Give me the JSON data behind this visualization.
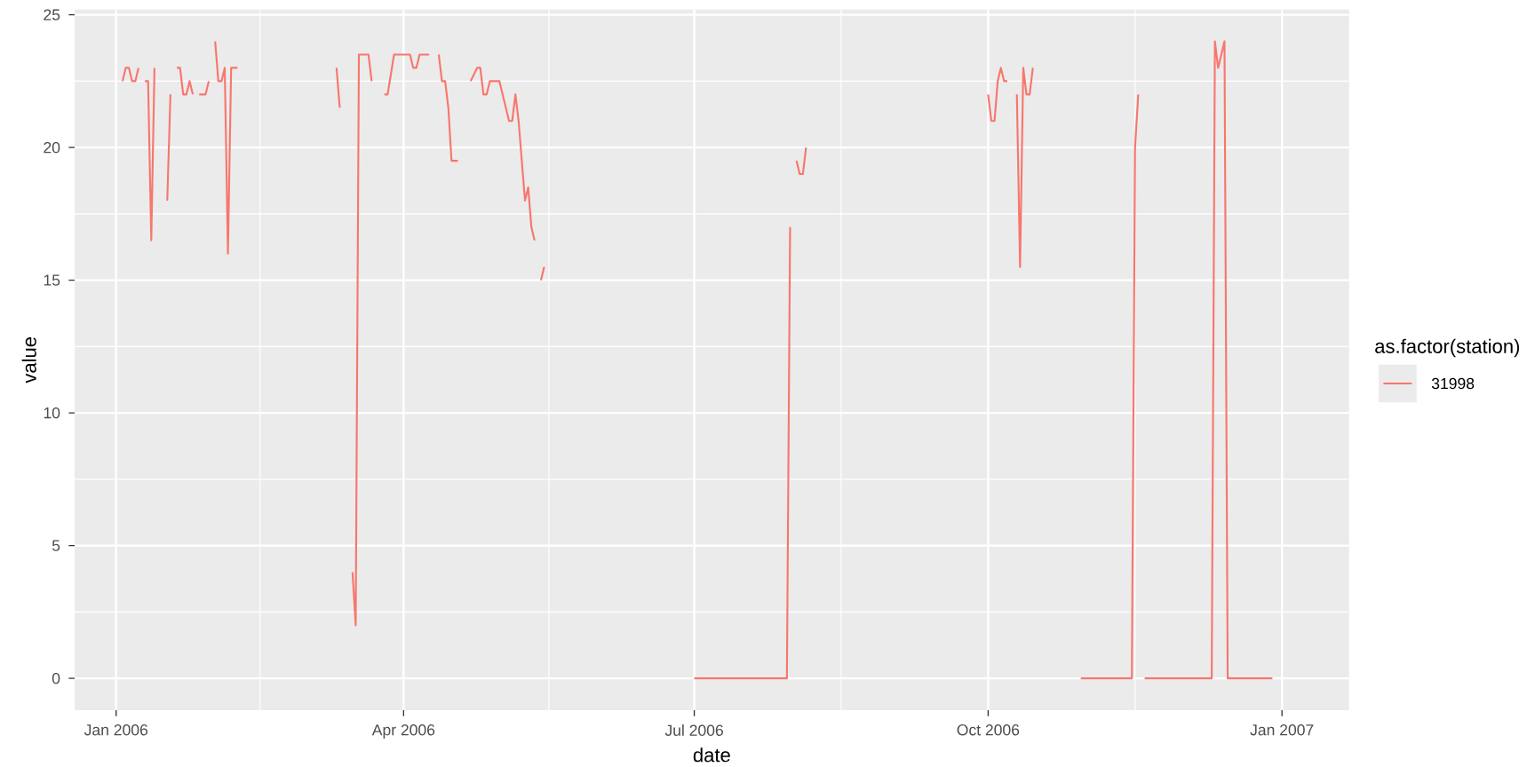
{
  "chart_data": {
    "type": "line",
    "xlabel": "date",
    "ylabel": "value",
    "legend_title": "as.factor(station)",
    "x": [
      "2006-01-03",
      "2006-01-04",
      "2006-01-05",
      "2006-01-06",
      "2006-01-07",
      "2006-01-08",
      "2006-01-09",
      "2006-01-10",
      "2006-01-11",
      "2006-01-12",
      "2006-01-13",
      "2006-01-14",
      "2006-01-17",
      "2006-01-18",
      "2006-01-19",
      "2006-01-20",
      "2006-01-21",
      "2006-01-22",
      "2006-01-23",
      "2006-01-24",
      "2006-01-25",
      "2006-01-26",
      "2006-01-27",
      "2006-01-28",
      "2006-01-29",
      "2006-01-30",
      "2006-01-31",
      "2006-02-01",
      "2006-02-02",
      "2006-02-03",
      "2006-02-04",
      "2006-02-05",
      "2006-02-06",
      "2006-02-08",
      "2006-02-09",
      "2006-03-11",
      "2006-03-12",
      "2006-03-13",
      "2006-03-16",
      "2006-03-17",
      "2006-03-18",
      "2006-03-21",
      "2006-03-22",
      "2006-03-23",
      "2006-03-26",
      "2006-03-27",
      "2006-03-29",
      "2006-04-03",
      "2006-04-04",
      "2006-04-05",
      "2006-04-06",
      "2006-04-09",
      "2006-04-10",
      "2006-04-12",
      "2006-04-13",
      "2006-04-14",
      "2006-04-15",
      "2006-04-16",
      "2006-04-18",
      "2006-04-19",
      "2006-04-22",
      "2006-04-24",
      "2006-04-25",
      "2006-04-26",
      "2006-04-27",
      "2006-04-28",
      "2006-05-01",
      "2006-05-04",
      "2006-05-05",
      "2006-05-06",
      "2006-05-07",
      "2006-05-09",
      "2006-05-10",
      "2006-05-11",
      "2006-05-12",
      "2006-05-13",
      "2006-05-14",
      "2006-05-15",
      "2006-06-01",
      "2006-07-01",
      "2006-07-30",
      "2006-07-31",
      "2006-08-01",
      "2006-08-02",
      "2006-08-03",
      "2006-08-04",
      "2006-08-05",
      "2006-09-30",
      "2006-10-01",
      "2006-10-02",
      "2006-10-03",
      "2006-10-04",
      "2006-10-05",
      "2006-10-06",
      "2006-10-07",
      "2006-10-08",
      "2006-10-10",
      "2006-10-11",
      "2006-10-12",
      "2006-10-13",
      "2006-10-14",
      "2006-10-15",
      "2006-10-29",
      "2006-10-30",
      "2006-11-15",
      "2006-11-16",
      "2006-11-17",
      "2006-11-18",
      "2006-11-19",
      "2006-12-10",
      "2006-12-11",
      "2006-12-12",
      "2006-12-13",
      "2006-12-14",
      "2006-12-15",
      "2006-12-29"
    ],
    "series": [
      {
        "name": "31998",
        "color": "#f8766d",
        "values": [
          22.5,
          23,
          23,
          22.5,
          22.5,
          23,
          null,
          22.5,
          22.5,
          16.5,
          23,
          null,
          18,
          22,
          null,
          23,
          23,
          22,
          22,
          22.5,
          22,
          null,
          22,
          22,
          22,
          22.5,
          null,
          24,
          22.5,
          22.5,
          23,
          16,
          23,
          23,
          null,
          23,
          21.5,
          null,
          4,
          2,
          23.5,
          23.5,
          22.5,
          null,
          22,
          22,
          23.5,
          23.5,
          23,
          23,
          23.5,
          23.5,
          null,
          23.5,
          22.5,
          22.5,
          21.5,
          19.5,
          19.5,
          null,
          22.5,
          23,
          23,
          22,
          22,
          22.5,
          22.5,
          21,
          21,
          22,
          21,
          18,
          18.5,
          17,
          16.5,
          null,
          15,
          15.5,
          null,
          0,
          0,
          17,
          null,
          19.5,
          19,
          19,
          20,
          null,
          22,
          21,
          21,
          22.5,
          23,
          22.5,
          22.5,
          null,
          22,
          15.5,
          23,
          22,
          22,
          23,
          null,
          0,
          0,
          20,
          22,
          null,
          0,
          0,
          24,
          23,
          23.5,
          24,
          0,
          0
        ]
      }
    ],
    "xlim": [
      "2005-12-19",
      "2007-01-22"
    ],
    "ylim": [
      -1.2,
      25.2
    ],
    "xticks": [
      {
        "value": "2006-01-01",
        "label": "Jan 2006"
      },
      {
        "value": "2006-04-01",
        "label": "Apr 2006"
      },
      {
        "value": "2006-07-01",
        "label": "Jul 2006"
      },
      {
        "value": "2006-10-01",
        "label": "Oct 2006"
      },
      {
        "value": "2007-01-01",
        "label": "Jan 2007"
      }
    ],
    "yticks": [
      0,
      5,
      10,
      15,
      20,
      25
    ],
    "grid": true,
    "legend": "right"
  }
}
